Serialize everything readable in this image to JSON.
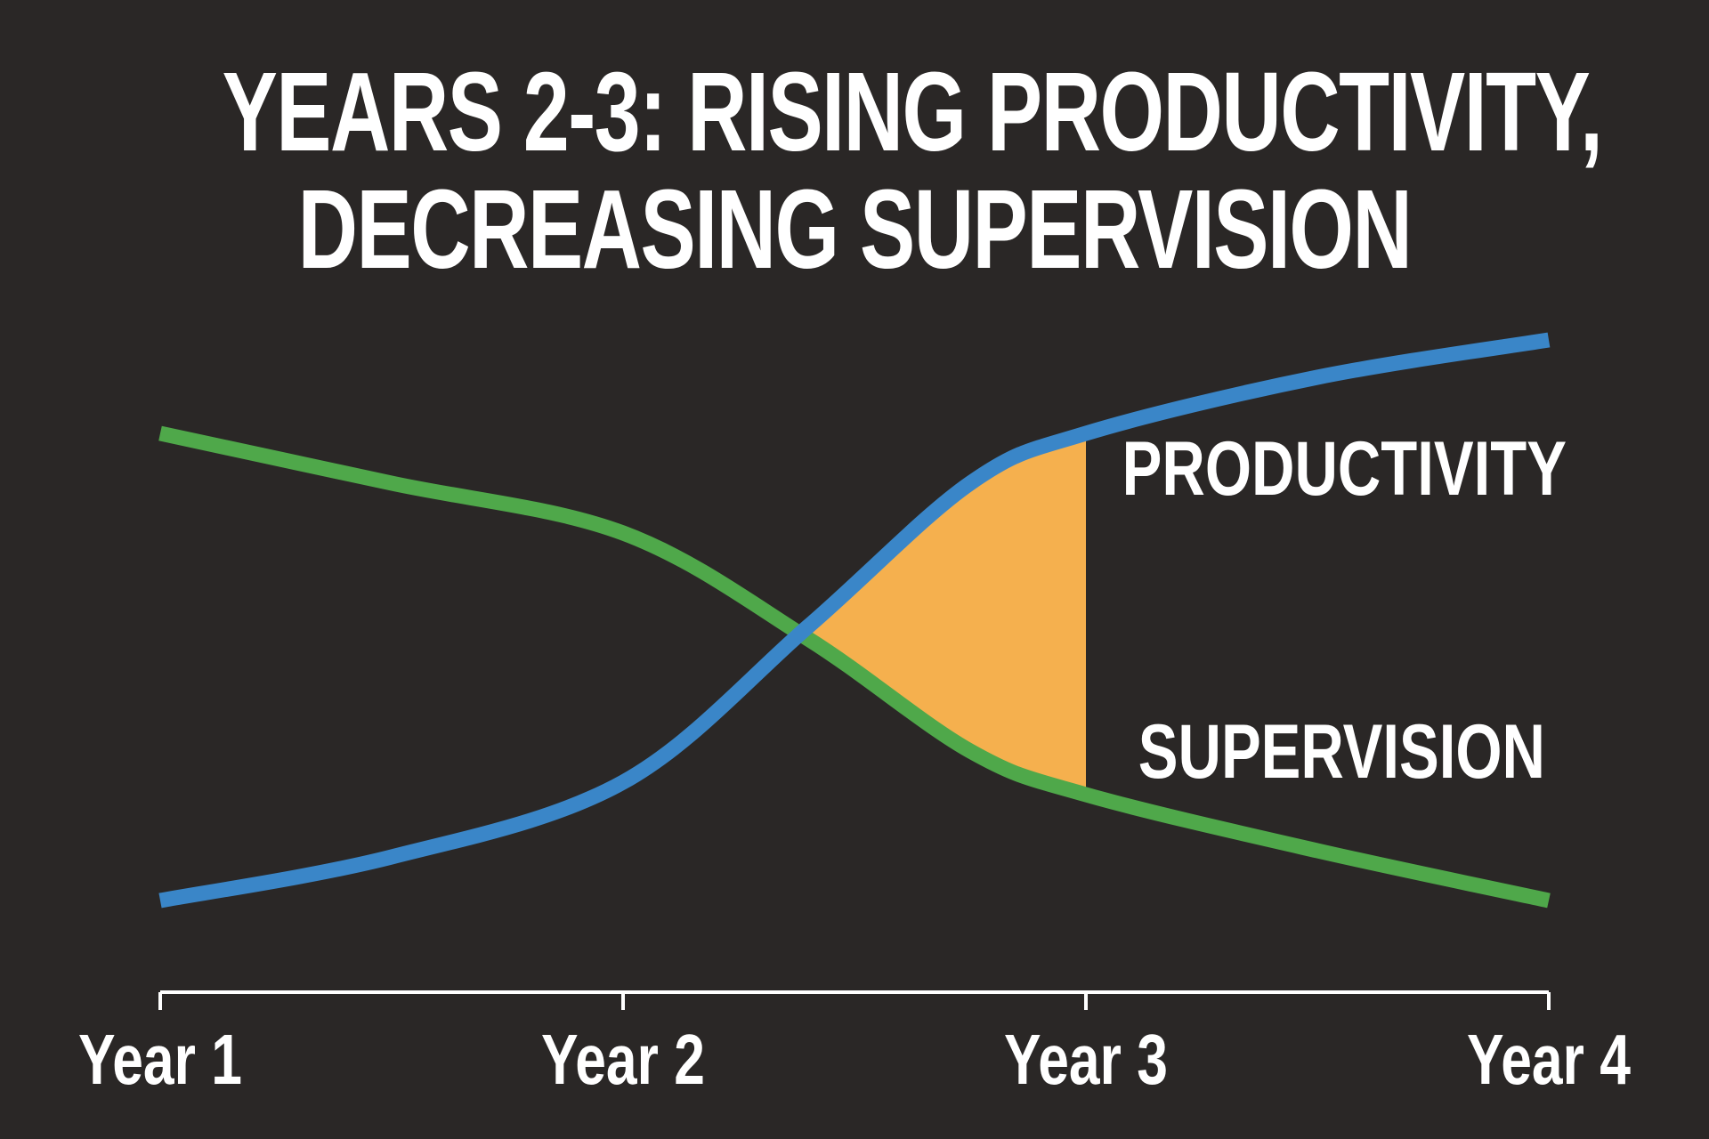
{
  "title": {
    "line1": "YEARS 2-3: RISING PRODUCTIVITY,",
    "line2": "DECREASING SUPERVISION"
  },
  "chart_data": {
    "type": "line",
    "title": "YEARS 2-3: RISING PRODUCTIVITY, DECREASING SUPERVISION",
    "xlabel": "",
    "ylabel": "",
    "categories": [
      "Year 1",
      "Year 2",
      "Year 3",
      "Year 4"
    ],
    "xlim": [
      1,
      4
    ],
    "ylim": [
      0,
      10
    ],
    "grid": false,
    "legend": "inline-right",
    "series": [
      {
        "name": "PRODUCTIVITY",
        "color": "#3a86c8",
        "points": [
          [
            1.0,
            0.4
          ],
          [
            1.5,
            1.1
          ],
          [
            2.0,
            2.3
          ],
          [
            2.4,
            4.8
          ],
          [
            2.75,
            7.1
          ],
          [
            3.0,
            7.9
          ],
          [
            3.5,
            8.8
          ],
          [
            4.0,
            9.4
          ]
        ]
      },
      {
        "name": "SUPERVISION",
        "color": "#4fa84a",
        "points": [
          [
            1.0,
            7.9
          ],
          [
            1.5,
            7.1
          ],
          [
            2.0,
            6.3
          ],
          [
            2.4,
            4.6
          ],
          [
            2.75,
            2.8
          ],
          [
            3.0,
            2.1
          ],
          [
            3.5,
            1.2
          ],
          [
            4.0,
            0.4
          ]
        ]
      }
    ],
    "highlight": {
      "color": "#f5b04e",
      "x_from": 2.39,
      "x_to": 3.0,
      "between": [
        "PRODUCTIVITY",
        "SUPERVISION"
      ]
    }
  }
}
